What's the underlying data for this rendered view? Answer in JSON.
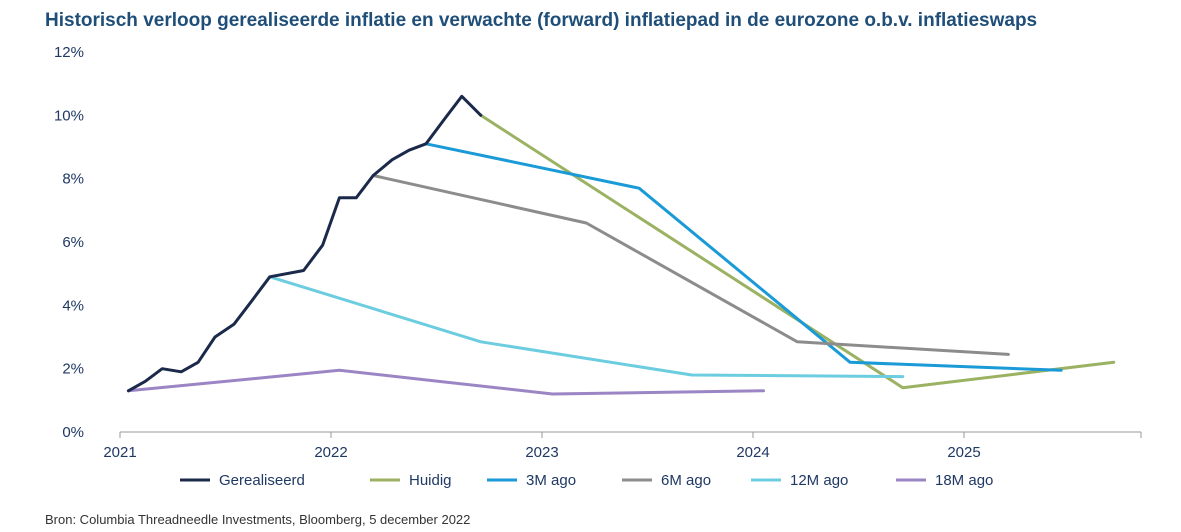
{
  "title": "Historisch verloop gerealiseerde inflatie en verwachte (forward) inflatiepad in de eurozone o.b.v. inflatieswaps",
  "source": "Bron: Columbia Threadneedle Investments, Bloomberg, 5 december 2022",
  "chart_data": {
    "type": "line",
    "title": "Historisch verloop gerealiseerde inflatie en verwachte (forward) inflatiepad in de eurozone o.b.v. inflatieswaps",
    "xlabel": "",
    "ylabel": "",
    "xlim": [
      2021.0,
      2025.85
    ],
    "ylim": [
      0,
      12
    ],
    "x_ticks": [
      2021,
      2022,
      2023,
      2024,
      2025
    ],
    "x_tick_labels": [
      "2021",
      "2022",
      "2023",
      "2024",
      "2025"
    ],
    "y_ticks": [
      0,
      2,
      4,
      6,
      8,
      10,
      12
    ],
    "y_tick_labels": [
      "0%",
      "2%",
      "4%",
      "6%",
      "8%",
      "10%",
      "12%"
    ],
    "grid": false,
    "legend_position": "bottom",
    "series": [
      {
        "name": "Gerealiseerd",
        "color": "#1b2a4a",
        "points": [
          [
            2021.04,
            1.3
          ],
          [
            2021.12,
            1.6
          ],
          [
            2021.2,
            2.0
          ],
          [
            2021.29,
            1.9
          ],
          [
            2021.37,
            2.2
          ],
          [
            2021.45,
            3.0
          ],
          [
            2021.54,
            3.4
          ],
          [
            2021.62,
            4.1
          ],
          [
            2021.71,
            4.9
          ],
          [
            2021.87,
            5.1
          ],
          [
            2021.96,
            5.9
          ],
          [
            2022.04,
            7.4
          ],
          [
            2022.12,
            7.4
          ],
          [
            2022.2,
            8.1
          ],
          [
            2022.29,
            8.6
          ],
          [
            2022.37,
            8.9
          ],
          [
            2022.45,
            9.1
          ],
          [
            2022.54,
            9.9
          ],
          [
            2022.62,
            10.6
          ],
          [
            2022.71,
            10.0
          ]
        ]
      },
      {
        "name": "Huidig",
        "color": "#9bb263",
        "points": [
          [
            2022.71,
            10.0
          ],
          [
            2024.71,
            1.4
          ],
          [
            2025.71,
            2.2
          ]
        ]
      },
      {
        "name": "3M ago",
        "color": "#1a9ad6",
        "points": [
          [
            2022.45,
            9.1
          ],
          [
            2023.46,
            7.7
          ],
          [
            2024.46,
            2.2
          ],
          [
            2025.46,
            1.95
          ]
        ]
      },
      {
        "name": "6M ago",
        "color": "#8c8c8c",
        "points": [
          [
            2022.2,
            8.1
          ],
          [
            2023.21,
            6.6
          ],
          [
            2024.21,
            2.85
          ],
          [
            2025.21,
            2.45
          ]
        ]
      },
      {
        "name": "12M ago",
        "color": "#6ccde0",
        "points": [
          [
            2021.71,
            4.9
          ],
          [
            2022.71,
            2.85
          ],
          [
            2023.71,
            1.8
          ],
          [
            2024.71,
            1.75
          ]
        ]
      },
      {
        "name": "18M ago",
        "color": "#9b85c4",
        "points": [
          [
            2021.04,
            1.3
          ],
          [
            2022.04,
            1.95
          ],
          [
            2023.05,
            1.2
          ],
          [
            2024.05,
            1.3
          ]
        ]
      }
    ]
  }
}
